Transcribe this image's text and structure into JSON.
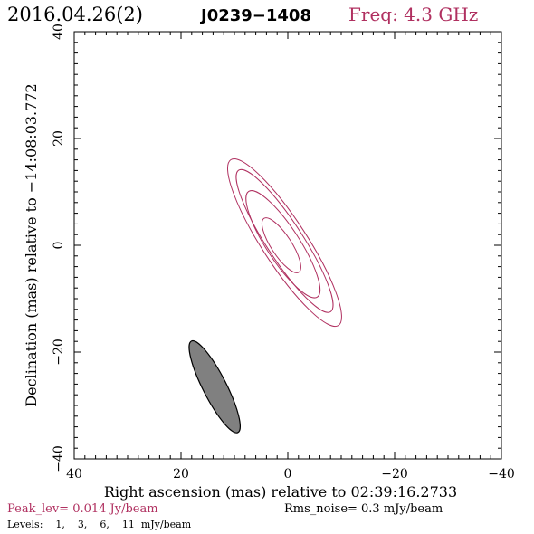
{
  "header": {
    "date": "2016.04.26(2)",
    "source": "J0239−1408",
    "freq": "Freq: 4.3 GHz"
  },
  "footer": {
    "peak": "Peak_lev=  0.014 Jy/beam",
    "rms": "Rms_noise=   0.3 mJy/beam",
    "levels": "Levels:    1,    3,    6,    11  mJy/beam"
  },
  "colors": {
    "accent": "#b03060",
    "beam_fill": "#808080",
    "axis": "#000000"
  },
  "chart_data": {
    "type": "contour",
    "title": "",
    "xlabel": "Right ascension (mas) relative to 02:39:16.2733",
    "ylabel": "Declination (mas) relative to −14:08:03.772",
    "xlim": [
      40,
      -40
    ],
    "ylim": [
      -40,
      40
    ],
    "x_ticks": [
      40,
      20,
      0,
      -20,
      -40
    ],
    "y_ticks": [
      -40,
      -20,
      0,
      20,
      40
    ],
    "x_tick_labels": [
      "40",
      "20",
      "0",
      "−20",
      "−40"
    ],
    "y_tick_labels": [
      "−40",
      "−20",
      "0",
      "20",
      "40"
    ],
    "contour_levels_mJy": [
      1,
      3,
      6,
      11
    ],
    "contours": [
      {
        "level": 1,
        "center": [
          0.6,
          0.5
        ],
        "semi_major": 18.5,
        "semi_minor": 4.2,
        "pa_deg": 33
      },
      {
        "level": 3,
        "center": [
          0.6,
          0.8
        ],
        "semi_major": 15.8,
        "semi_minor": 3.4,
        "pa_deg": 33
      },
      {
        "level": 6,
        "center": [
          0.9,
          0.2
        ],
        "semi_major": 11.8,
        "semi_minor": 3.1,
        "pa_deg": 33
      },
      {
        "level": 11,
        "center": [
          1.2,
          0.0
        ],
        "semi_major": 6.0,
        "semi_minor": 1.9,
        "pa_deg": 33
      }
    ],
    "beam": {
      "center": [
        13.7,
        -26.5
      ],
      "semi_major": 9.6,
      "semi_minor": 2.2,
      "pa_deg": 27
    }
  }
}
